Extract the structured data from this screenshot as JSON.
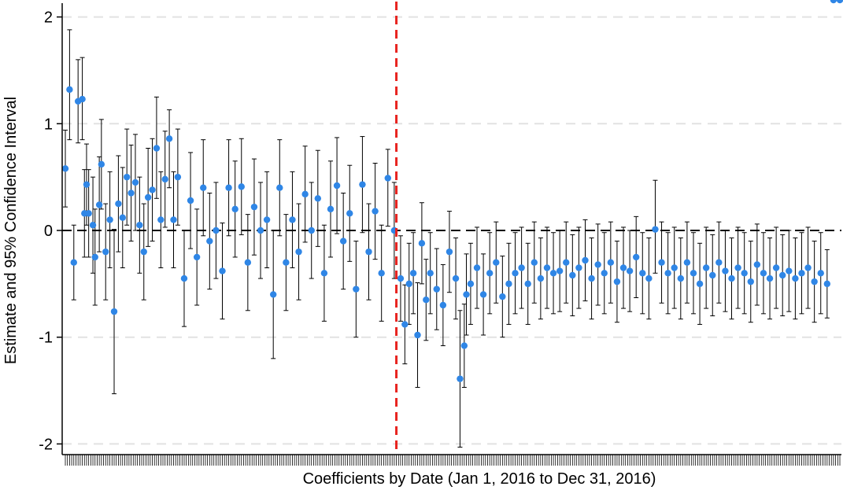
{
  "chart_data": {
    "type": "scatter",
    "subtype": "coefficient plot with 95% confidence interval error bars",
    "title": "",
    "xlabel": "Coefficients by Date (Jan 1, 2016 to Dec 31, 2016)",
    "ylabel": "Estimate and 95% Confidence Interval",
    "ylim": [
      -2.1,
      2.1
    ],
    "y_ticks": [
      -2,
      -1,
      0,
      1,
      2
    ],
    "y_tick_labels": [
      "-2",
      "-1",
      "0",
      "1",
      "2"
    ],
    "x_range": [
      "2016-01-01",
      "2016-12-31"
    ],
    "n_coefficients": 366,
    "x_tick_labels_shown": false,
    "grid": "horizontal dashed at y ticks",
    "reference_line": {
      "axis": "y",
      "value": 0,
      "style": "dashed",
      "color": "#000000"
    },
    "treatment_line": {
      "axis": "x",
      "date": "2016-06-05",
      "style": "dashed",
      "color": "#e8231f"
    },
    "point_color": "#2f86e6",
    "errorbar_color": "#000000",
    "series": [
      {
        "name": "",
        "x": [
          "2016-01-01",
          "2016-01-03",
          "2016-01-05",
          "2016-01-07",
          "2016-01-09",
          "2016-01-10",
          "2016-01-11",
          "2016-01-12",
          "2016-01-14",
          "2016-01-15",
          "2016-01-17",
          "2016-01-18",
          "2016-01-20",
          "2016-01-22",
          "2016-01-24",
          "2016-01-26",
          "2016-01-28",
          "2016-01-30",
          "2016-02-01",
          "2016-02-03",
          "2016-02-05",
          "2016-02-07",
          "2016-02-09",
          "2016-02-11",
          "2016-02-13",
          "2016-02-15",
          "2016-02-17",
          "2016-02-19",
          "2016-02-21",
          "2016-02-23",
          "2016-02-26",
          "2016-02-29",
          "2016-03-03",
          "2016-03-06",
          "2016-03-09",
          "2016-03-12",
          "2016-03-15",
          "2016-03-18",
          "2016-03-21",
          "2016-03-24",
          "2016-03-27",
          "2016-03-30",
          "2016-04-02",
          "2016-04-05",
          "2016-04-08",
          "2016-04-11",
          "2016-04-14",
          "2016-04-17",
          "2016-04-20",
          "2016-04-23",
          "2016-04-26",
          "2016-04-29",
          "2016-05-02",
          "2016-05-05",
          "2016-05-08",
          "2016-05-11",
          "2016-05-14",
          "2016-05-17",
          "2016-05-20",
          "2016-05-23",
          "2016-05-26",
          "2016-05-29",
          "2016-06-01",
          "2016-06-04",
          "2016-06-07",
          "2016-06-09",
          "2016-06-11",
          "2016-06-13",
          "2016-06-15",
          "2016-06-17",
          "2016-06-19",
          "2016-06-21",
          "2016-06-24",
          "2016-06-27",
          "2016-06-30",
          "2016-07-03",
          "2016-07-05",
          "2016-07-07",
          "2016-07-08",
          "2016-07-10",
          "2016-07-13",
          "2016-07-16",
          "2016-07-19",
          "2016-07-22",
          "2016-07-25",
          "2016-07-28",
          "2016-07-31",
          "2016-08-03",
          "2016-08-06",
          "2016-08-09",
          "2016-08-12",
          "2016-08-15",
          "2016-08-18",
          "2016-08-21",
          "2016-08-24",
          "2016-08-27",
          "2016-08-30",
          "2016-09-02",
          "2016-09-05",
          "2016-09-08",
          "2016-09-11",
          "2016-09-14",
          "2016-09-17",
          "2016-09-20",
          "2016-09-23",
          "2016-09-26",
          "2016-09-29",
          "2016-10-02",
          "2016-10-05",
          "2016-10-08",
          "2016-10-11",
          "2016-10-14",
          "2016-10-17",
          "2016-10-20",
          "2016-10-23",
          "2016-10-26",
          "2016-10-29",
          "2016-11-01",
          "2016-11-04",
          "2016-11-07",
          "2016-11-10",
          "2016-11-13",
          "2016-11-16",
          "2016-11-19",
          "2016-11-22",
          "2016-11-25",
          "2016-11-28",
          "2016-12-01",
          "2016-12-04",
          "2016-12-07",
          "2016-12-10",
          "2016-12-13",
          "2016-12-16",
          "2016-12-19",
          "2016-12-22",
          "2016-12-25",
          "2016-12-28",
          "2016-12-31"
        ],
        "estimate": [
          0.58,
          1.32,
          -0.3,
          1.21,
          1.23,
          0.16,
          0.43,
          0.16,
          0.05,
          -0.25,
          0.24,
          0.62,
          -0.2,
          0.1,
          -0.76,
          0.25,
          0.12,
          0.5,
          0.35,
          0.45,
          0.05,
          -0.2,
          0.31,
          0.38,
          0.77,
          0.1,
          0.48,
          0.86,
          0.1,
          0.5,
          -0.45,
          0.28,
          -0.25,
          0.4,
          -0.1,
          0.0,
          -0.38,
          0.4,
          0.2,
          0.41,
          -0.3,
          0.22,
          0.0,
          0.1,
          -0.6,
          0.4,
          -0.3,
          0.1,
          -0.2,
          0.34,
          0.0,
          0.3,
          -0.4,
          0.2,
          0.42,
          -0.1,
          0.16,
          -0.55,
          0.43,
          -0.2,
          0.18,
          -0.4,
          0.49,
          0.0,
          -0.45,
          -0.88,
          -0.5,
          -0.4,
          -0.98,
          -0.12,
          -0.65,
          -0.4,
          -0.55,
          -0.7,
          -0.2,
          -0.45,
          -1.39,
          -1.08,
          -0.6,
          -0.5,
          -0.35,
          -0.6,
          -0.4,
          -0.3,
          -0.62,
          -0.5,
          -0.4,
          -0.35,
          -0.5,
          -0.3,
          -0.45,
          -0.35,
          -0.4,
          -0.38,
          -0.3,
          -0.42,
          -0.35,
          -0.28,
          -0.45,
          -0.32,
          -0.4,
          -0.3,
          -0.48,
          -0.35,
          -0.38,
          -0.25,
          -0.4,
          -0.45,
          0.01,
          -0.3,
          -0.4,
          -0.35,
          -0.45,
          -0.3,
          -0.4,
          -0.5,
          -0.35,
          -0.42,
          -0.3,
          -0.38,
          -0.45,
          -0.35,
          -0.4,
          -0.48,
          -0.32,
          -0.4,
          -0.45,
          -0.35,
          -0.42,
          -0.38,
          -0.45,
          -0.4,
          -0.35,
          -0.48,
          -0.4,
          -0.5
        ],
        "ci_low": [
          0.22,
          0.85,
          -0.65,
          0.82,
          0.85,
          -0.25,
          0.05,
          -0.25,
          -0.4,
          -0.7,
          -0.2,
          0.2,
          -0.65,
          -0.35,
          -1.53,
          -0.2,
          -0.35,
          0.05,
          -0.1,
          0.0,
          -0.4,
          -0.65,
          -0.15,
          -0.1,
          0.3,
          -0.35,
          0.03,
          0.4,
          -0.35,
          0.05,
          -0.9,
          -0.17,
          -0.7,
          -0.05,
          -0.55,
          -0.45,
          -0.83,
          -0.05,
          -0.25,
          -0.04,
          -0.75,
          -0.23,
          -0.45,
          -0.35,
          -1.2,
          -0.05,
          -0.75,
          -0.35,
          -0.65,
          -0.11,
          -0.45,
          -0.15,
          -0.85,
          -0.25,
          -0.03,
          -0.55,
          -0.29,
          -1.0,
          -0.02,
          -0.65,
          -0.27,
          -0.85,
          0.04,
          -0.45,
          -0.85,
          -1.25,
          -0.88,
          -0.78,
          -1.47,
          -0.5,
          -1.03,
          -0.78,
          -0.93,
          -1.08,
          -0.58,
          -0.83,
          -2.03,
          -1.47,
          -0.98,
          -0.88,
          -0.73,
          -0.98,
          -0.78,
          -0.68,
          -1.0,
          -0.88,
          -0.78,
          -0.73,
          -0.88,
          -0.68,
          -0.83,
          -0.73,
          -0.78,
          -0.76,
          -0.68,
          -0.8,
          -0.73,
          -0.66,
          -0.83,
          -0.7,
          -0.78,
          -0.68,
          -0.86,
          -0.73,
          -0.76,
          -0.63,
          -0.78,
          -0.83,
          -0.4,
          -0.68,
          -0.78,
          -0.73,
          -0.83,
          -0.68,
          -0.78,
          -0.88,
          -0.73,
          -0.8,
          -0.68,
          -0.76,
          -0.83,
          -0.73,
          -0.78,
          -0.86,
          -0.7,
          -0.78,
          -0.83,
          -0.73,
          -0.8,
          -0.76,
          -0.83,
          -0.78,
          -0.73,
          -0.86,
          -0.78,
          -0.82
        ],
        "ci_high": [
          0.94,
          1.88,
          0.05,
          1.6,
          1.62,
          0.57,
          0.81,
          0.57,
          0.5,
          0.2,
          0.69,
          1.04,
          0.25,
          0.55,
          0.01,
          0.7,
          0.59,
          0.95,
          0.8,
          0.9,
          0.5,
          0.25,
          0.77,
          0.86,
          1.25,
          0.55,
          0.93,
          1.13,
          0.55,
          0.95,
          0.0,
          0.73,
          0.2,
          0.85,
          0.35,
          0.45,
          0.07,
          0.85,
          0.65,
          0.86,
          0.15,
          0.67,
          0.45,
          0.55,
          0.0,
          0.85,
          0.15,
          0.55,
          0.25,
          0.79,
          0.45,
          0.75,
          0.05,
          0.65,
          0.87,
          0.35,
          0.61,
          -0.1,
          0.88,
          0.25,
          0.63,
          0.05,
          0.76,
          0.45,
          -0.05,
          -0.51,
          -0.12,
          -0.02,
          -0.49,
          0.26,
          -0.27,
          -0.02,
          -0.17,
          -0.32,
          0.18,
          -0.07,
          -0.75,
          -0.69,
          -0.22,
          -0.12,
          0.03,
          -0.22,
          -0.02,
          0.08,
          -0.24,
          -0.12,
          -0.02,
          0.03,
          -0.12,
          0.08,
          -0.07,
          0.03,
          -0.02,
          0.0,
          0.08,
          -0.04,
          0.03,
          0.1,
          -0.07,
          0.06,
          -0.02,
          0.08,
          -0.1,
          0.03,
          0.0,
          0.13,
          -0.02,
          -0.07,
          0.47,
          0.08,
          -0.02,
          0.03,
          -0.07,
          0.08,
          -0.02,
          -0.12,
          0.03,
          -0.04,
          0.08,
          0.0,
          -0.07,
          0.03,
          -0.02,
          -0.1,
          0.06,
          -0.02,
          -0.07,
          0.03,
          -0.04,
          0.0,
          -0.07,
          -0.02,
          0.03,
          -0.1,
          -0.02,
          -0.18
        ]
      }
    ]
  }
}
